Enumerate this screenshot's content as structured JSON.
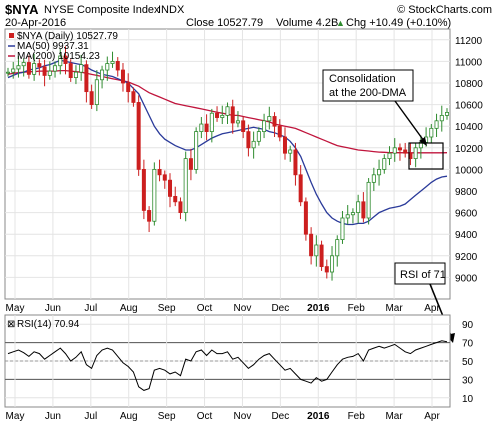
{
  "header": {
    "symbol": "$NYA",
    "name": "NYSE Composite Index",
    "exchange": "INDX",
    "brand": "© StockCharts.com",
    "date": "20-Apr-2016",
    "close": "Close 10527.79",
    "volume": "Volume 4.2B",
    "change": "Chg +10.49 (+0.10%)",
    "change_arrow": "▲"
  },
  "legend": {
    "price": "$NYA (Daily) 10527.79",
    "ma50": "MA(50) 9937.31",
    "ma200": "MA(200) 10154.23"
  },
  "annotations": {
    "consolidation_line1": "Consolidation",
    "consolidation_line2": "at the 200-DMA",
    "rsi_note": "RSI of 71"
  },
  "rsi_panel": {
    "title": "RSI(14) 70.94",
    "ticks": [
      "90",
      "70",
      "50",
      "30",
      "10"
    ]
  },
  "x_axis": {
    "months": [
      "May",
      "Jun",
      "Jul",
      "Aug",
      "Sep",
      "Oct",
      "Nov",
      "Dec",
      "2016",
      "Feb",
      "Mar",
      "Apr"
    ]
  },
  "colors": {
    "ma50": "#2a3a9a",
    "ma200": "#c0143c",
    "up_candle": "#2e8b2e",
    "down_candle": "#cc1f1f",
    "grid": "#e4e4e4",
    "rsi_line": "#000000"
  },
  "chart_data": [
    {
      "type": "candlestick",
      "title": "$NYA (Daily) 10527.79",
      "ylim": [
        8800,
        11300
      ],
      "y_ticks": [
        9000,
        9200,
        9400,
        9600,
        9800,
        10000,
        10200,
        10400,
        10600,
        10800,
        11000,
        11200
      ],
      "x_labels": [
        "May",
        "Jun",
        "Jul",
        "Aug",
        "Sep",
        "Oct",
        "Nov",
        "Dec",
        "2016",
        "Feb",
        "Mar",
        "Apr"
      ],
      "price_series": [
        10900,
        10930,
        10960,
        10990,
        10880,
        10980,
        10950,
        10870,
        10910,
        10960,
        11050,
        10980,
        10850,
        10900,
        10970,
        10720,
        10600,
        10830,
        10920,
        10980,
        11000,
        10920,
        10800,
        10720,
        10620,
        10000,
        9620,
        9520,
        10000,
        9950,
        9900,
        9750,
        9700,
        9600,
        10100,
        10000,
        10350,
        10420,
        10350,
        10520,
        10480,
        10500,
        10580,
        10430,
        10450,
        10350,
        10200,
        10260,
        10350,
        10450,
        10490,
        10400,
        10300,
        10150,
        10180,
        9950,
        9700,
        9400,
        9200,
        9300,
        9100,
        9050,
        9200,
        9350,
        9550,
        9580,
        9600,
        9700,
        9550,
        9880,
        9950,
        10000,
        10100,
        10150,
        10200,
        10180,
        10150,
        10100,
        10200,
        10250,
        10300,
        10380,
        10450,
        10500,
        10527.79
      ],
      "series": [
        {
          "name": "MA(50)",
          "values": [
            10850,
            10870,
            10890,
            10900,
            10920,
            10930,
            10940,
            10960,
            10970,
            10990,
            11010,
            11000,
            10990,
            10980,
            10970,
            10950,
            10920,
            10900,
            10880,
            10870,
            10860,
            10840,
            10820,
            10800,
            10750,
            10700,
            10600,
            10500,
            10400,
            10330,
            10280,
            10250,
            10220,
            10200,
            10180,
            10180,
            10200,
            10230,
            10260,
            10290,
            10310,
            10330,
            10340,
            10350,
            10360,
            10370,
            10380,
            10390,
            10380,
            10370,
            10350,
            10340,
            10320,
            10300,
            10260,
            10200,
            10120,
            10000,
            9880,
            9770,
            9680,
            9600,
            9550,
            9520,
            9500,
            9490,
            9490,
            9500,
            9500,
            9520,
            9560,
            9600,
            9620,
            9640,
            9650,
            9660,
            9680,
            9720,
            9760,
            9800,
            9840,
            9880,
            9910,
            9930,
            9937.31
          ]
        },
        {
          "name": "MA(200)",
          "values": [
            10880,
            10890,
            10895,
            10900,
            10905,
            10905,
            10910,
            10910,
            10910,
            10910,
            10915,
            10915,
            10910,
            10905,
            10900,
            10890,
            10880,
            10870,
            10860,
            10850,
            10840,
            10830,
            10820,
            10810,
            10790,
            10770,
            10740,
            10710,
            10690,
            10670,
            10650,
            10630,
            10610,
            10600,
            10590,
            10580,
            10570,
            10560,
            10550,
            10540,
            10530,
            10520,
            10510,
            10500,
            10500,
            10490,
            10480,
            10470,
            10460,
            10450,
            10440,
            10420,
            10410,
            10400,
            10390,
            10380,
            10360,
            10340,
            10320,
            10300,
            10280,
            10260,
            10240,
            10220,
            10210,
            10200,
            10190,
            10180,
            10175,
            10170,
            10165,
            10160,
            10158,
            10156,
            10155,
            10155,
            10154,
            10154,
            10154,
            10154,
            10154,
            10154,
            10154,
            10154,
            10154.23
          ]
        }
      ]
    },
    {
      "type": "line",
      "title": "RSI(14) 70.94",
      "ylim": [
        0,
        100
      ],
      "y_ticks": [
        10,
        30,
        50,
        70,
        90
      ],
      "reference_lines": [
        30,
        70
      ],
      "series": [
        {
          "name": "RSI(14)",
          "values": [
            58,
            60,
            62,
            59,
            55,
            60,
            58,
            52,
            56,
            60,
            64,
            58,
            50,
            54,
            60,
            46,
            42,
            56,
            62,
            64,
            62,
            55,
            48,
            44,
            38,
            22,
            18,
            20,
            40,
            42,
            40,
            36,
            38,
            34,
            52,
            50,
            60,
            62,
            56,
            62,
            58,
            58,
            60,
            52,
            54,
            48,
            42,
            46,
            52,
            56,
            58,
            52,
            46,
            40,
            42,
            36,
            30,
            28,
            26,
            32,
            28,
            30,
            38,
            46,
            52,
            54,
            55,
            58,
            50,
            62,
            64,
            66,
            64,
            66,
            68,
            64,
            60,
            58,
            62,
            64,
            66,
            68,
            70,
            72,
            70.94
          ]
        }
      ]
    }
  ]
}
